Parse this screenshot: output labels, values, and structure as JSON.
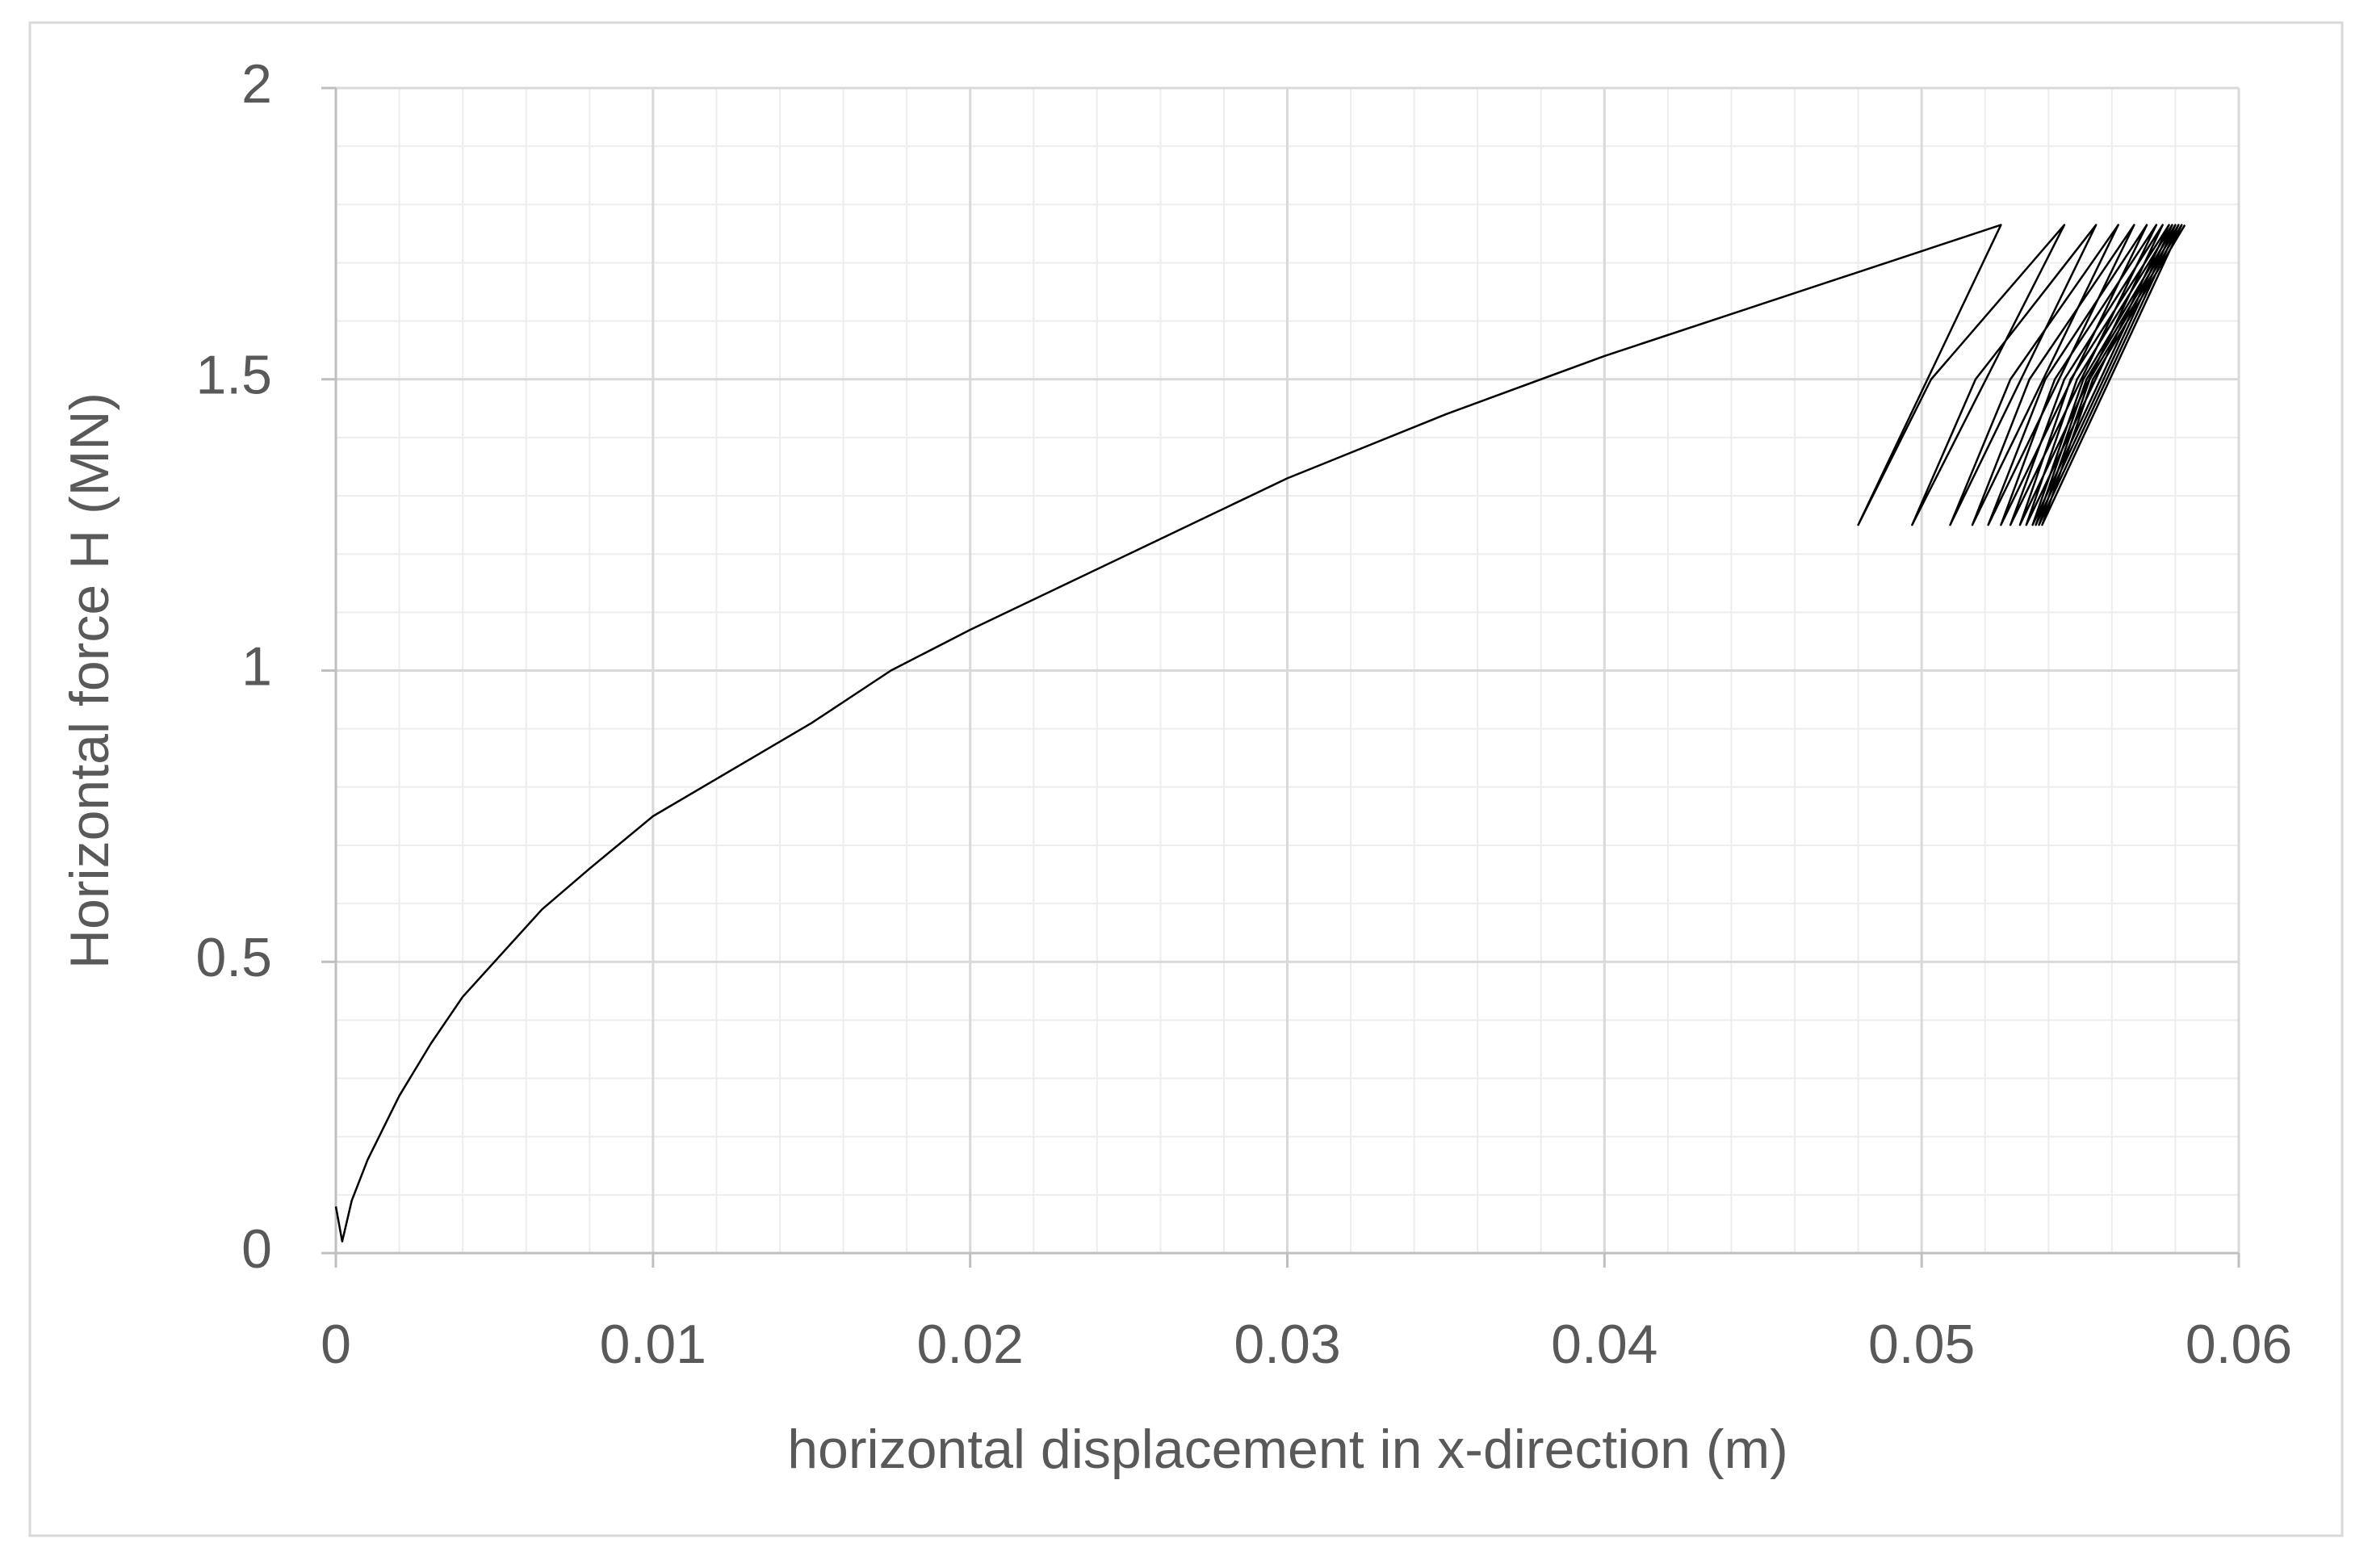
{
  "chart_data": {
    "type": "line",
    "x_label": "horizontal displacement in x-direction (m)",
    "y_label": "Horizontal force H (MN)",
    "x": [
      0,
      0.0002,
      0.0005,
      0.001,
      0.002,
      0.003,
      0.004,
      0.005,
      0.0065,
      0.008,
      0.01,
      0.0125,
      0.015,
      0.0175,
      0.02,
      0.025,
      0.03,
      0.035,
      0.04,
      0.045,
      0.05,
      0.0525,
      0.048,
      0.0503,
      0.0545,
      0.0497,
      0.0517,
      0.0555,
      0.0509,
      0.0528,
      0.0562,
      0.0516,
      0.0534,
      0.0567,
      0.0521,
      0.0539,
      0.0571,
      0.0525,
      0.0542,
      0.0574,
      0.0528,
      0.0545,
      0.0576,
      0.0531,
      0.0547,
      0.0578,
      0.0533,
      0.0549,
      0.0579,
      0.0535,
      0.0551,
      0.058,
      0.0536,
      0.0552,
      0.0581,
      0.0537,
      0.0553,
      0.0582,
      0.0538,
      0.0554,
      0.0583
    ],
    "values": [
      0.08,
      0.02,
      0.09,
      0.16,
      0.27,
      0.36,
      0.44,
      0.5,
      0.59,
      0.66,
      0.75,
      0.83,
      0.91,
      1.0,
      1.07,
      1.2,
      1.33,
      1.44,
      1.54,
      1.63,
      1.72,
      1.765,
      1.25,
      1.5,
      1.765,
      1.25,
      1.5,
      1.765,
      1.25,
      1.5,
      1.765,
      1.25,
      1.5,
      1.765,
      1.25,
      1.5,
      1.765,
      1.25,
      1.5,
      1.765,
      1.25,
      1.5,
      1.765,
      1.25,
      1.5,
      1.765,
      1.25,
      1.5,
      1.765,
      1.25,
      1.5,
      1.765,
      1.25,
      1.5,
      1.765,
      1.25,
      1.5,
      1.765,
      1.25,
      1.5,
      1.765
    ],
    "color": "#000000",
    "xlim": [
      0,
      0.06
    ],
    "xticks": [
      0,
      0.01,
      0.02,
      0.03,
      0.04,
      0.05,
      0.06
    ],
    "ylim": [
      0,
      2
    ],
    "yticks": [
      0,
      0.5,
      1,
      1.5,
      2
    ],
    "grid": true,
    "minor_grid": true
  }
}
